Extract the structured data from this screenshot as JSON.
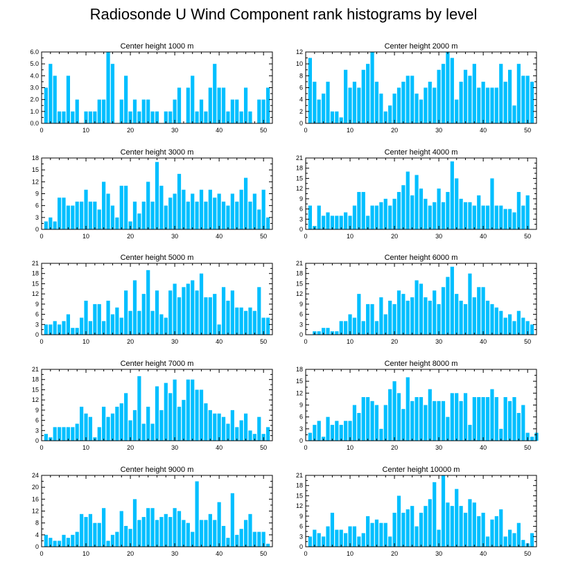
{
  "title": "Radiosonde U Wind Component rank histograms by level",
  "bar_color": "#00bfff",
  "chart_data": [
    {
      "type": "bar",
      "title": "Center height 1000 m",
      "xlim": [
        0,
        52
      ],
      "ylim": [
        0,
        6
      ],
      "xticks": [
        "0",
        "10",
        "20",
        "30",
        "40",
        "50"
      ],
      "yticks": [
        "0.0",
        "1.0",
        "2.0",
        "3.0",
        "4.0",
        "5.0",
        "6.0"
      ],
      "values": [
        3,
        5,
        4,
        1,
        1,
        4,
        1,
        2,
        0,
        1,
        1,
        1,
        2,
        2,
        6,
        5,
        0,
        2,
        4,
        1,
        2,
        1,
        2,
        2,
        1,
        1,
        0,
        1,
        1,
        2,
        3,
        0,
        3,
        4,
        1,
        2,
        1,
        3,
        5,
        3,
        3,
        1,
        2,
        2,
        1,
        3,
        1,
        0,
        2,
        2,
        3
      ]
    },
    {
      "type": "bar",
      "title": "Center height 2000 m",
      "xlim": [
        0,
        52
      ],
      "ylim": [
        0,
        12
      ],
      "xticks": [
        "0",
        "10",
        "20",
        "30",
        "40",
        "50"
      ],
      "yticks": [
        "0",
        "2",
        "4",
        "6",
        "8",
        "10",
        "12"
      ],
      "values": [
        11,
        7,
        4,
        5,
        7,
        2,
        2,
        1,
        9,
        6,
        7,
        6,
        9,
        10,
        12,
        7,
        5,
        2,
        3,
        5,
        6,
        7,
        8,
        8,
        5,
        4,
        6,
        7,
        6,
        9,
        10,
        12,
        11,
        4,
        7,
        9,
        8,
        10,
        6,
        7,
        6,
        6,
        6,
        10,
        7,
        9,
        3,
        10,
        8,
        8,
        7
      ]
    },
    {
      "type": "bar",
      "title": "Center height 3000 m",
      "xlim": [
        0,
        52
      ],
      "ylim": [
        0,
        18
      ],
      "xticks": [
        "0",
        "10",
        "20",
        "30",
        "40",
        "50"
      ],
      "yticks": [
        "0",
        "3",
        "6",
        "9",
        "12",
        "15",
        "18"
      ],
      "values": [
        2,
        3,
        2,
        8,
        8,
        6,
        6,
        7,
        7,
        10,
        7,
        7,
        5,
        12,
        9,
        6,
        3,
        11,
        11,
        2,
        7,
        4,
        7,
        12,
        7,
        17,
        11,
        6,
        8,
        9,
        14,
        10,
        7,
        9,
        7,
        10,
        7,
        10,
        8,
        9,
        7,
        6,
        9,
        7,
        10,
        13,
        7,
        9,
        5,
        10,
        3
      ]
    },
    {
      "type": "bar",
      "title": "Center height 4000 m",
      "xlim": [
        0,
        52
      ],
      "ylim": [
        0,
        21
      ],
      "xticks": [
        "0",
        "10",
        "20",
        "30",
        "40",
        "50"
      ],
      "yticks": [
        "0",
        "3",
        "6",
        "9",
        "12",
        "15",
        "18",
        "21"
      ],
      "values": [
        7,
        1,
        7,
        4,
        5,
        4,
        4,
        4,
        5,
        4,
        7,
        11,
        11,
        4,
        7,
        7,
        8,
        9,
        7,
        9,
        11,
        13,
        17,
        10,
        16,
        12,
        9,
        7,
        8,
        12,
        8,
        11,
        20,
        15,
        9,
        8,
        8,
        7,
        10,
        7,
        7,
        15,
        7,
        7,
        6,
        6,
        5,
        11,
        7,
        10,
        0
      ]
    },
    {
      "type": "bar",
      "title": "Center height 5000 m",
      "xlim": [
        0,
        52
      ],
      "ylim": [
        0,
        21
      ],
      "xticks": [
        "0",
        "10",
        "20",
        "30",
        "40",
        "50"
      ],
      "yticks": [
        "0",
        "3",
        "6",
        "9",
        "12",
        "15",
        "18",
        "21"
      ],
      "values": [
        3,
        3,
        4,
        3,
        4,
        6,
        2,
        2,
        5,
        10,
        4,
        9,
        9,
        4,
        10,
        6,
        8,
        5,
        13,
        7,
        16,
        7,
        12,
        19,
        7,
        13,
        6,
        5,
        13,
        15,
        11,
        14,
        15,
        16,
        13,
        18,
        11,
        11,
        12,
        3,
        14,
        10,
        13,
        8,
        8,
        7,
        8,
        7,
        14,
        5,
        5
      ]
    },
    {
      "type": "bar",
      "title": "Center height 6000 m",
      "xlim": [
        0,
        52
      ],
      "ylim": [
        0,
        21
      ],
      "xticks": [
        "0",
        "10",
        "20",
        "30",
        "40",
        "50"
      ],
      "yticks": [
        "0",
        "3",
        "6",
        "9",
        "12",
        "15",
        "18",
        "21"
      ],
      "values": [
        0,
        1,
        1,
        2,
        2,
        1,
        1,
        4,
        4,
        6,
        5,
        12,
        4,
        9,
        9,
        4,
        11,
        6,
        10,
        9,
        13,
        12,
        10,
        11,
        16,
        15,
        11,
        10,
        13,
        9,
        14,
        17,
        20,
        12,
        10,
        9,
        18,
        11,
        14,
        14,
        10,
        9,
        8,
        7,
        5,
        6,
        4,
        7,
        5,
        4,
        3
      ]
    },
    {
      "type": "bar",
      "title": "Center height 7000 m",
      "xlim": [
        0,
        52
      ],
      "ylim": [
        0,
        21
      ],
      "xticks": [
        "0",
        "10",
        "20",
        "30",
        "40",
        "50"
      ],
      "yticks": [
        "0",
        "3",
        "6",
        "9",
        "12",
        "15",
        "18",
        "21"
      ],
      "values": [
        2,
        1,
        4,
        4,
        4,
        4,
        4,
        5,
        10,
        8,
        7,
        1,
        4,
        10,
        7,
        8,
        10,
        11,
        14,
        6,
        9,
        19,
        5,
        10,
        5,
        16,
        9,
        17,
        14,
        18,
        10,
        12,
        18,
        18,
        15,
        15,
        11,
        9,
        8,
        8,
        7,
        5,
        9,
        4,
        6,
        8,
        3,
        2,
        7,
        2,
        4
      ]
    },
    {
      "type": "bar",
      "title": "Center height 8000 m",
      "xlim": [
        0,
        52
      ],
      "ylim": [
        0,
        18
      ],
      "xticks": [
        "0",
        "10",
        "20",
        "30",
        "40",
        "50"
      ],
      "yticks": [
        "0",
        "3",
        "6",
        "9",
        "12",
        "15",
        "18"
      ],
      "values": [
        2,
        4,
        5,
        1,
        6,
        4,
        5,
        4,
        5,
        5,
        9,
        7,
        11,
        11,
        10,
        9,
        3,
        9,
        13,
        15,
        12,
        8,
        16,
        10,
        11,
        11,
        9,
        13,
        10,
        10,
        10,
        6,
        12,
        12,
        10,
        12,
        4,
        11,
        11,
        11,
        11,
        13,
        11,
        3,
        11,
        10,
        11,
        7,
        9,
        2,
        1,
        2
      ]
    },
    {
      "type": "bar",
      "title": "Center height 9000 m",
      "xlim": [
        0,
        52
      ],
      "ylim": [
        0,
        24
      ],
      "xticks": [
        "0",
        "10",
        "20",
        "30",
        "40",
        "50"
      ],
      "yticks": [
        "0",
        "4",
        "8",
        "12",
        "16",
        "20",
        "24"
      ],
      "values": [
        4,
        3,
        2,
        2,
        4,
        3,
        4,
        5,
        11,
        10,
        11,
        8,
        8,
        13,
        2,
        4,
        5,
        12,
        7,
        6,
        16,
        9,
        10,
        13,
        13,
        9,
        10,
        11,
        10,
        13,
        12,
        9,
        8,
        5,
        22,
        9,
        9,
        11,
        9,
        15,
        7,
        3,
        18,
        4,
        6,
        9,
        11,
        5,
        5,
        5,
        1
      ]
    },
    {
      "type": "bar",
      "title": "Center height 10000 m",
      "xlim": [
        0,
        52
      ],
      "ylim": [
        0,
        21
      ],
      "xticks": [
        "0",
        "10",
        "20",
        "30",
        "40",
        "50"
      ],
      "yticks": [
        "0",
        "3",
        "6",
        "9",
        "12",
        "15",
        "18",
        "21"
      ],
      "values": [
        3,
        5,
        4,
        3,
        6,
        10,
        5,
        5,
        4,
        6,
        6,
        3,
        4,
        9,
        7,
        8,
        7,
        7,
        3,
        10,
        15,
        10,
        11,
        12,
        6,
        10,
        12,
        14,
        19,
        5,
        21,
        13,
        12,
        17,
        12,
        10,
        14,
        13,
        9,
        10,
        3,
        8,
        9,
        11,
        3,
        5,
        4,
        7,
        2,
        1,
        4
      ]
    }
  ]
}
